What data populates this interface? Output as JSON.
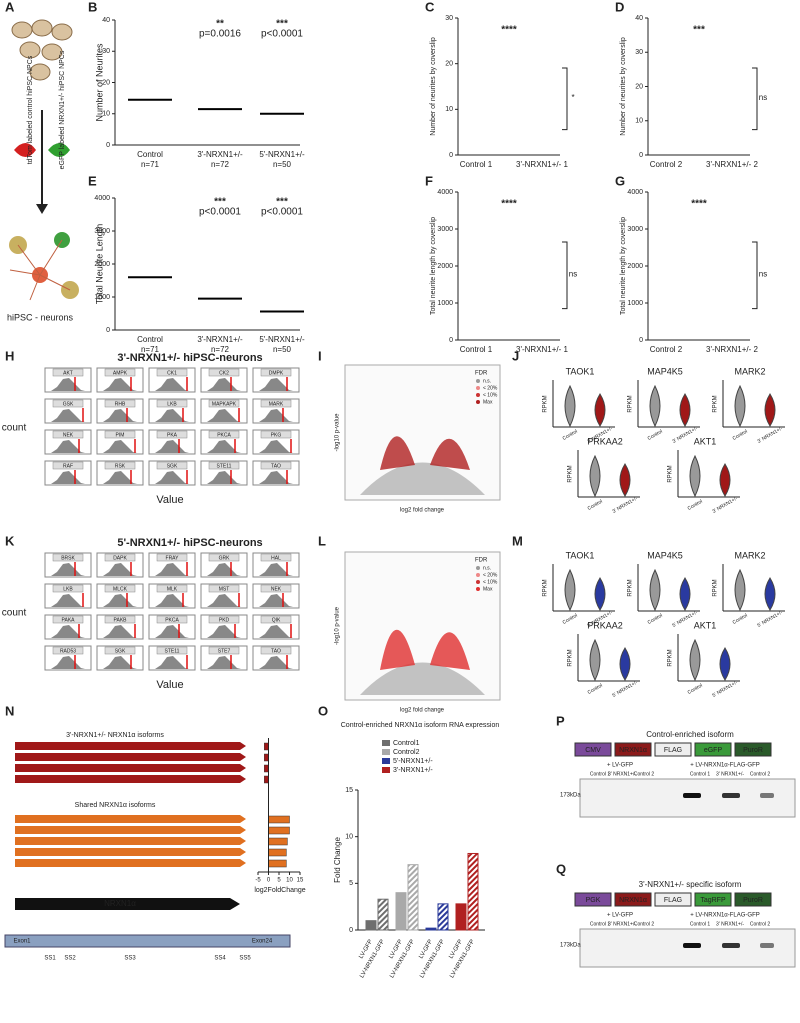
{
  "panel_labels": [
    "A",
    "B",
    "C",
    "D",
    "E",
    "F",
    "G",
    "H",
    "I",
    "J",
    "K",
    "L",
    "M",
    "N",
    "O",
    "P",
    "Q"
  ],
  "a": {
    "red_label": "tdTom labeled control hiPSC NPCs",
    "green_label": "eGFP labeled NRXN1+/- hiPSC NPCs",
    "bottom": "hiPSC - neurons"
  },
  "b": {
    "ylabel": "Number of Neurites",
    "categories": [
      "Control",
      "3'-NRXN1+/-",
      "5'-NRXN1+/-"
    ],
    "n": [
      "n=71",
      "n=72",
      "n=50"
    ],
    "stars": [
      "**",
      "***"
    ],
    "p": [
      "p=0.0016",
      "p<0.0001"
    ],
    "means": [
      14.5,
      11.5,
      10
    ],
    "ylim": [
      0,
      40
    ],
    "yticks": [
      0,
      10,
      20,
      30,
      40
    ]
  },
  "e": {
    "ylabel": "Total Neurite Length",
    "categories": [
      "Control",
      "3'-NRXN1+/-",
      "5'-NRXN1+/-"
    ],
    "n": [
      "n=71",
      "n=72",
      "n=50"
    ],
    "stars": [
      "***",
      "***"
    ],
    "p": [
      "p<0.0001",
      "p<0.0001"
    ],
    "means": [
      1600,
      950,
      560
    ],
    "ylim": [
      0,
      4000
    ],
    "yticks": [
      0,
      1000,
      2000,
      3000,
      4000
    ]
  },
  "c": {
    "ylabel": "Number of neurites by coverslip",
    "categories": [
      "Control 1",
      "3'-NRXN1+/- 1"
    ],
    "stars": "****",
    "bracket": "*",
    "ylim": [
      0,
      30
    ],
    "yticks": [
      0,
      10,
      20,
      30
    ]
  },
  "d": {
    "ylabel": "Number of neurites by coverslip",
    "categories": [
      "Control 2",
      "3'-NRXN1+/- 2"
    ],
    "stars": "***",
    "bracket": "ns",
    "ylim": [
      0,
      40
    ],
    "yticks": [
      0,
      10,
      20,
      30,
      40
    ]
  },
  "f": {
    "ylabel": "Total neurite length by coverslip",
    "categories": [
      "Control 1",
      "3'-NRXN1+/- 1"
    ],
    "stars": "****",
    "bracket": "ns",
    "ylim": [
      0,
      4000
    ],
    "yticks": [
      0,
      1000,
      2000,
      3000,
      4000
    ]
  },
  "g": {
    "ylabel": "Total neurite length by coverslip",
    "categories": [
      "Control 2",
      "3'-NRXN1+/- 2"
    ],
    "stars": "****",
    "bracket": "ns",
    "ylim": [
      0,
      4000
    ],
    "yticks": [
      0,
      1000,
      2000,
      3000,
      4000
    ]
  },
  "h": {
    "title": "3'-NRXN1+/- hiPSC-neurons",
    "ylabel": "count",
    "xlabel": "Value",
    "kinases": [
      "AKT",
      "AMPK",
      "CK1",
      "CK2",
      "DMPK",
      "GSK",
      "RHB",
      "LKB",
      "MAPKAPK",
      "MARK",
      "NEK",
      "PIM",
      "PKA",
      "PKCA",
      "PKG",
      "RAF",
      "RSK",
      "SGK",
      "STE11",
      "TAO"
    ]
  },
  "i": {
    "legend_title": "FDR",
    "legend": [
      "n.s.",
      "< 20%",
      "< 10%",
      "Max"
    ],
    "xlabel": "log2 fold change",
    "ylabel": "-log10 p-value"
  },
  "j": {
    "genes": [
      "TAOK1",
      "MAP4K5",
      "MARK2",
      "PRKAA2",
      "AKT1"
    ],
    "ylabel": "RPKM",
    "groups": [
      "Control",
      "3' NRXN1+/-"
    ]
  },
  "k": {
    "title": "5'-NRXN1+/- hiPSC-neurons",
    "ylabel": "count",
    "xlabel": "Value",
    "kinases": [
      "BRSK",
      "DAPK",
      "FRAY",
      "GRK",
      "HAL",
      "LKB",
      "MLCK",
      "MLK",
      "MST",
      "NEK",
      "PAKA",
      "PAKB",
      "PKCA",
      "PKD",
      "QIK",
      "RAD53",
      "SGK",
      "STE11",
      "STE7",
      "TAO"
    ]
  },
  "l": {
    "legend_title": "FDR",
    "legend": [
      "n.s.",
      "< 20%",
      "< 10%",
      "Max"
    ],
    "xlabel": "log2 fold change",
    "ylabel": "-log10 p-value"
  },
  "m": {
    "genes": [
      "TAOK1",
      "MAP4K5",
      "MARK2",
      "PRKAA2",
      "AKT1"
    ],
    "ylabel": "RPKM",
    "groups": [
      "Control",
      "5' NRXN1+/-"
    ]
  },
  "n": {
    "group1": "3'-NRXN1+/- NRXN1α isoforms",
    "group2": "Shared NRXN1α isoforms",
    "gene": "NRXN1α",
    "exons": [
      "Exon1",
      "Exon24"
    ],
    "sites": [
      "SS1",
      "SS2",
      "SS3",
      "SS4",
      "SS5"
    ],
    "xlabel": "log2FoldChange",
    "values": [
      -2,
      -2,
      -2,
      -2,
      10,
      10,
      9,
      8.5,
      8.5
    ],
    "xlim": [
      -5,
      15
    ],
    "xticks": [
      -5,
      0,
      5,
      10,
      15
    ]
  },
  "o": {
    "type": "bar",
    "title": "Control-enriched NRXN1α isoform RNA expression",
    "ylabel": "Fold Change",
    "categories": [
      "LV-GFP",
      "LV-NRXN1-GFP"
    ],
    "ylim": [
      0,
      15
    ],
    "yticks": [
      0,
      5,
      10,
      15
    ],
    "series": [
      {
        "name": "Control1",
        "color": "#6e6e6e",
        "values": [
          1,
          3.3
        ]
      },
      {
        "name": "Control2",
        "color": "#a9a9a9",
        "values": [
          4,
          7
        ]
      },
      {
        "name": "5'-NRXN1+/-",
        "color": "#2a3a9a",
        "values": [
          0.2,
          2.8
        ]
      },
      {
        "name": "3'-NRXN1+/-",
        "color": "#b02020",
        "values": [
          2.8,
          8.2
        ]
      }
    ]
  },
  "p": {
    "title": "Control-enriched isoform",
    "construct": [
      "CMV",
      "NRXN1α",
      "FLAG",
      "eGFP",
      "PuroR"
    ],
    "conditions": [
      "+ LV-GFP",
      "+ LV-NRXN1α-FLAG-GFP"
    ],
    "lanes": [
      "Control 1",
      "3' NRXN1+/-",
      "Control 2"
    ],
    "size": "173kDa"
  },
  "q": {
    "title": "3'-NRXN1+/- specific isoform",
    "construct": [
      "PGK",
      "NRXN1α",
      "FLAG",
      "TagRFP",
      "PuroR"
    ],
    "conditions": [
      "+ LV-GFP",
      "+ LV-NRXN1α-FLAG-GFP"
    ],
    "lanes": [
      "Control 1",
      "3' NRXN1+/-",
      "Control 2"
    ],
    "size": "173kDa"
  }
}
